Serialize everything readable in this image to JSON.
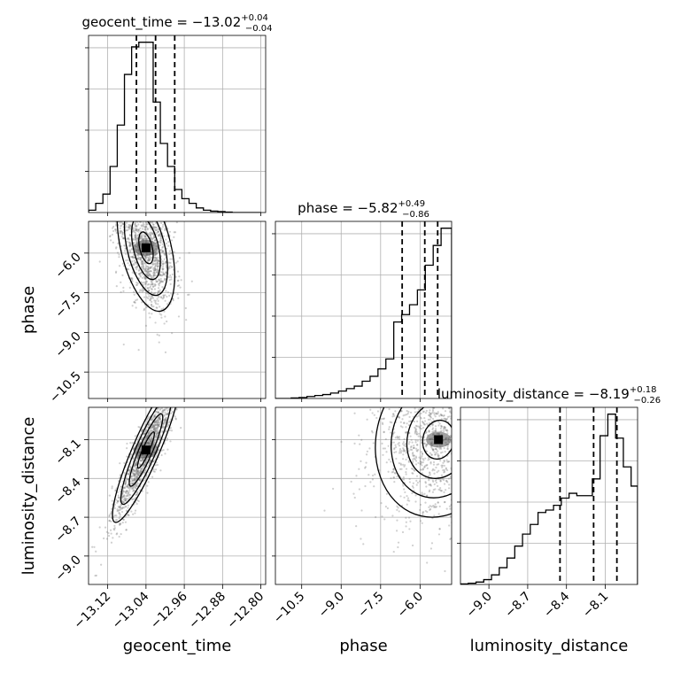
{
  "chart_data": {
    "type": "corner",
    "parameters": [
      "geocent_time",
      "phase",
      "luminosity_distance"
    ],
    "titles": {
      "geocent_time": {
        "name": "geocent_time",
        "median": "−13.02",
        "upper": "+0.04",
        "lower": "−0.04"
      },
      "phase": {
        "name": "phase",
        "median": "−5.82",
        "upper": "+0.49",
        "lower": "−0.86"
      },
      "luminosity_distance": {
        "name": "luminosity_distance",
        "median": "−8.19",
        "upper": "+0.18",
        "lower": "−0.26"
      }
    },
    "ranges": {
      "geocent_time": [
        -13.16,
        -12.79
      ],
      "phase": [
        -11.5,
        -4.8
      ],
      "luminosity_distance": [
        -9.22,
        -7.85
      ]
    },
    "ticks": {
      "geocent_time": {
        "values": [
          -13.12,
          -13.04,
          -12.96,
          -12.88,
          -12.8
        ],
        "labels": [
          "−13.12",
          "−13.04",
          "−12.96",
          "−12.88",
          "−12.80"
        ]
      },
      "phase": {
        "values": [
          -10.5,
          -9.0,
          -7.5,
          -6.0
        ],
        "labels": [
          "−10.5",
          "−9.0",
          "−7.5",
          "−6.0"
        ]
      },
      "luminosity_distance": {
        "values": [
          -9.0,
          -8.7,
          -8.4,
          -8.1
        ],
        "labels": [
          "−9.0",
          "−8.7",
          "−8.4",
          "−8.1"
        ]
      }
    },
    "quantiles": {
      "geocent_time": [
        -13.06,
        -13.02,
        -12.98
      ],
      "phase": [
        -6.68,
        -5.82,
        -5.33
      ],
      "luminosity_distance": [
        -8.45,
        -8.19,
        -8.01
      ]
    },
    "histograms": {
      "geocent_time": {
        "edges": [
          -13.16,
          -13.145,
          -13.13,
          -13.115,
          -13.1,
          -13.085,
          -13.07,
          -13.055,
          -13.04,
          -13.025,
          -13.01,
          -12.995,
          -12.98,
          -12.965,
          -12.95,
          -12.935,
          -12.92,
          -12.905,
          -12.89,
          -12.875,
          -12.86,
          -12.845,
          -12.83,
          -12.815,
          -12.8
        ],
        "counts": [
          0.5,
          2,
          4,
          10,
          19,
          30,
          36,
          37,
          37,
          24,
          15,
          10,
          5,
          3,
          2,
          1,
          0.5,
          0.3,
          0.2,
          0.1,
          0,
          0,
          0,
          0
        ]
      },
      "phase": {
        "edges": [
          -11.5,
          -11.2,
          -10.9,
          -10.6,
          -10.3,
          -10.0,
          -9.7,
          -9.4,
          -9.1,
          -8.8,
          -8.5,
          -8.2,
          -7.9,
          -7.6,
          -7.3,
          -7.0,
          -6.7,
          -6.4,
          -6.1,
          -5.8,
          -5.5,
          -5.2,
          -4.9,
          -4.8
        ],
        "counts": [
          0,
          0,
          0.2,
          0.4,
          0.8,
          1.2,
          1.6,
          2.2,
          3,
          4,
          5,
          7,
          9,
          12,
          16,
          31,
          34,
          38,
          44,
          54,
          62,
          69,
          69
        ]
      },
      "luminosity_distance": {
        "edges": [
          -9.22,
          -9.16,
          -9.1,
          -9.04,
          -8.98,
          -8.92,
          -8.86,
          -8.8,
          -8.74,
          -8.68,
          -8.62,
          -8.56,
          -8.5,
          -8.44,
          -8.38,
          -8.32,
          -8.26,
          -8.2,
          -8.14,
          -8.08,
          -8.02,
          -7.96,
          -7.9,
          -7.85
        ],
        "counts": [
          0.2,
          0.5,
          1,
          2,
          4,
          7,
          11,
          16,
          21,
          25,
          30,
          31,
          33,
          36,
          38,
          37,
          37,
          44,
          62,
          71,
          61,
          49,
          41
        ]
      }
    },
    "pairs": [
      {
        "x": "geocent_time",
        "y": "phase",
        "peak": [
          -13.04,
          -5.8
        ],
        "spread": [
          0.03,
          1.2
        ],
        "correlation": -0.45
      },
      {
        "x": "geocent_time",
        "y": "luminosity_distance",
        "peak": [
          -13.04,
          -8.18
        ],
        "spread": [
          0.035,
          0.28
        ],
        "correlation": 0.9
      },
      {
        "x": "phase",
        "y": "luminosity_distance",
        "peak": [
          -5.3,
          -8.1
        ],
        "spread": [
          1.2,
          0.3
        ],
        "correlation": 0.1
      }
    ],
    "xlabels": [
      "geocent_time",
      "phase",
      "luminosity_distance"
    ],
    "ylabels": [
      "phase",
      "luminosity_distance"
    ],
    "grid": true
  }
}
